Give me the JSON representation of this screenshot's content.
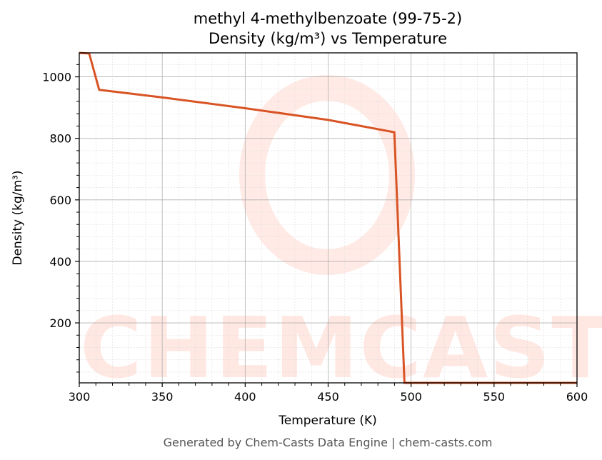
{
  "chart_data": {
    "type": "line",
    "title": "methyl 4-methylbenzoate (99-75-2)",
    "subtitle": "Density (kg/m³) vs Temperature",
    "xlabel": "Temperature (K)",
    "ylabel": "Density (kg/m³)",
    "xlim": [
      300,
      600
    ],
    "ylim": [
      5,
      1078
    ],
    "xticks": [
      300,
      350,
      400,
      450,
      500,
      550,
      600
    ],
    "yticks": [
      200,
      400,
      600,
      800,
      1000
    ],
    "grid": true,
    "series": [
      {
        "color": "#d95425",
        "x": [
          300,
          306,
          312,
          350,
          400,
          450,
          489.9,
          496,
          500,
          550,
          600
        ],
        "y": [
          1078,
          1076,
          958,
          933,
          898,
          860,
          820,
          5,
          5,
          5,
          5
        ]
      }
    ]
  },
  "watermark": {
    "text": "CHEMCASTS",
    "color": "#ff6b4a"
  },
  "footer": "Generated by Chem-Casts Data Engine | chem-casts.com"
}
